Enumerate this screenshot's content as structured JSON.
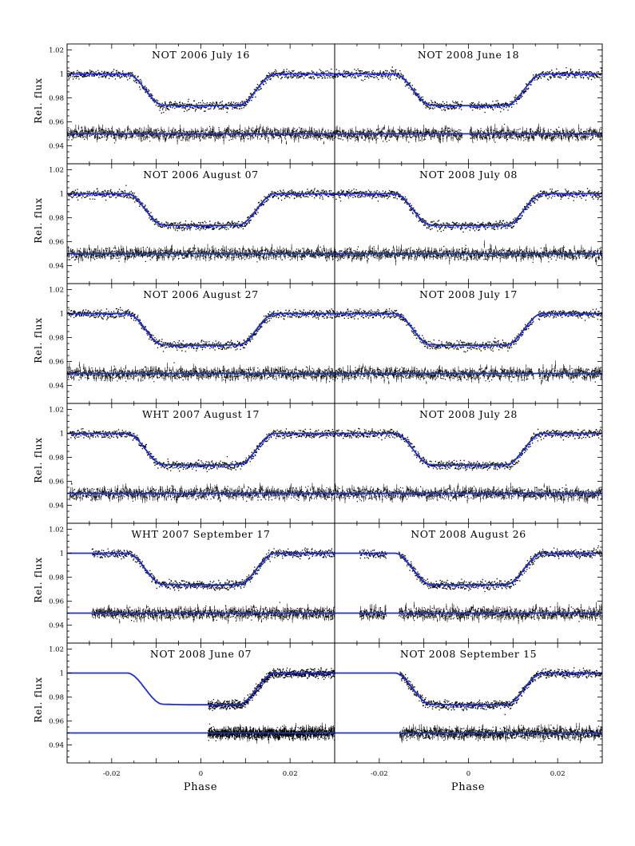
{
  "figure": {
    "xlabel": "Phase",
    "ylabel": "Rel. flux",
    "model_color": "#1f2fd6",
    "data_color": "#000000"
  },
  "chart_data": {
    "type": "scatter",
    "description_of_series": [
      "Observed relative flux",
      "Transit model",
      "Residuals offset to 0.95"
    ],
    "xlim": [
      -0.03,
      0.03
    ],
    "ylim": [
      0.925,
      1.025
    ],
    "xticks": [
      -0.02,
      0,
      0.02
    ],
    "xtick_labels": [
      "-0.02",
      "0",
      "0.02"
    ],
    "yticks": [
      0.94,
      0.96,
      0.98,
      1,
      1.02
    ],
    "ytick_labels": [
      "0.94",
      "0.96",
      "0.98",
      "1",
      "1.02"
    ],
    "transit_model": {
      "out_of_transit_flux": 1.0,
      "in_transit_flux": 0.974,
      "ingress_start_phase": -0.0165,
      "full_transit_start_phase": -0.0085,
      "residual_baseline": 0.95
    },
    "panels": [
      {
        "title": "NOT 2006 July 16",
        "data_xrange": [
          -0.03,
          0.03
        ],
        "gaps": []
      },
      {
        "title": "NOT 2008 June 18",
        "data_xrange": [
          -0.03,
          0.03
        ],
        "gaps": [
          [
            -0.0015,
            0.0002
          ]
        ]
      },
      {
        "title": "NOT 2006 August 07",
        "data_xrange": [
          -0.03,
          0.03
        ],
        "gaps": []
      },
      {
        "title": "NOT 2008 July 08",
        "data_xrange": [
          -0.03,
          0.03
        ],
        "gaps": []
      },
      {
        "title": "NOT 2006 August 27",
        "data_xrange": [
          -0.03,
          0.03
        ],
        "gaps": []
      },
      {
        "title": "NOT 2008 July 17",
        "data_xrange": [
          -0.03,
          0.03
        ],
        "gaps": [
          [
            0.0145,
            0.0155
          ]
        ]
      },
      {
        "title": "WHT 2007 August 17",
        "data_xrange": [
          -0.0295,
          0.03
        ],
        "gaps": []
      },
      {
        "title": "NOT 2008 July 28",
        "data_xrange": [
          -0.03,
          0.03
        ],
        "gaps": []
      },
      {
        "title": "WHT 2007 September 17",
        "data_xrange": [
          -0.0245,
          0.03
        ],
        "gaps": []
      },
      {
        "title": "NOT 2008 August 26",
        "data_xrange": [
          -0.0245,
          0.03
        ],
        "gaps": [
          [
            -0.0185,
            -0.0157
          ]
        ]
      },
      {
        "title": "NOT 2008 June 07",
        "data_xrange": [
          0.0015,
          0.03
        ],
        "gaps": []
      },
      {
        "title": "NOT 2008 September 15",
        "data_xrange": [
          -0.0155,
          0.03
        ],
        "gaps": []
      }
    ]
  }
}
